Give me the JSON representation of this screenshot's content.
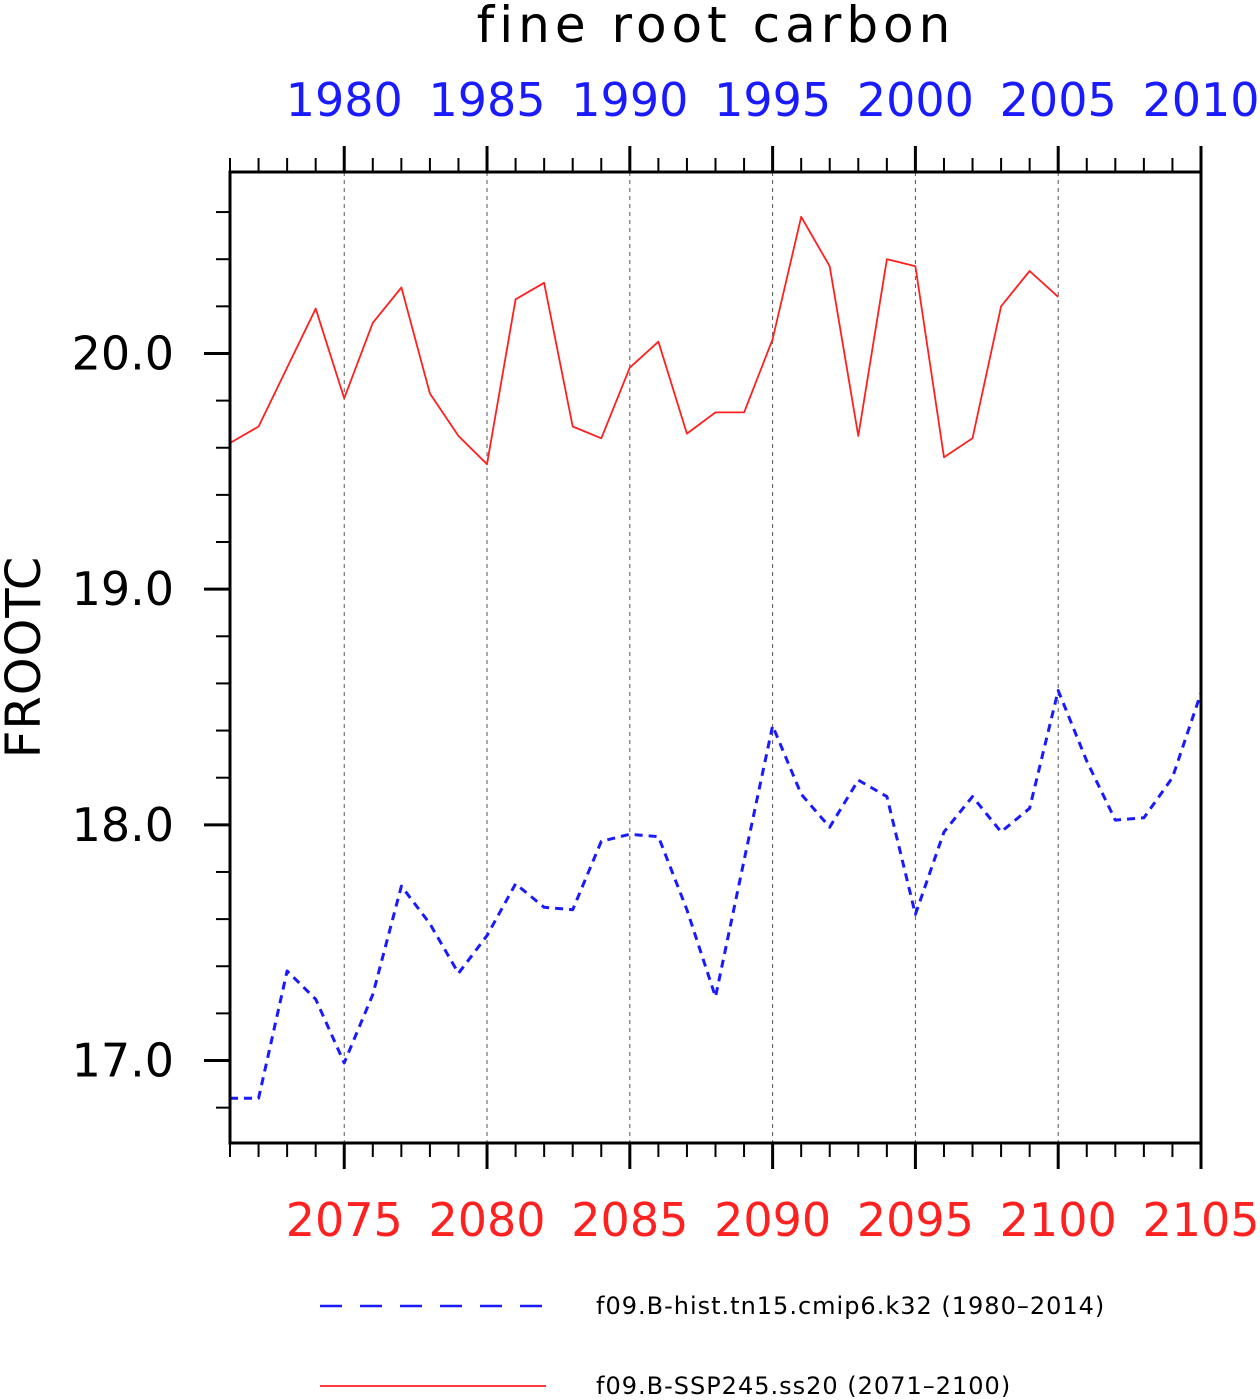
{
  "chart_data": {
    "type": "line",
    "title": "fine root carbon",
    "ylabel": "FROOTC",
    "ylim": [
      16.65,
      20.77
    ],
    "y_ticks": [
      17.0,
      18.0,
      19.0,
      20.0
    ],
    "y_tick_labels": [
      "17.0",
      "18.0",
      "19.0",
      "20.0"
    ],
    "y_minor_step": 0.2,
    "grid": "vertical dashed lines at labelled bottom-axis years",
    "x_top": {
      "range": [
        1976,
        2010
      ],
      "ticks": [
        1980,
        1985,
        1990,
        1995,
        2000,
        2005,
        2010
      ],
      "labels": [
        "1980",
        "1985",
        "1990",
        "1995",
        "2000",
        "2005",
        "2010"
      ],
      "color": "#1a1aff"
    },
    "x_bottom": {
      "range": [
        2071,
        2105
      ],
      "ticks": [
        2075,
        2080,
        2085,
        2090,
        2095,
        2100,
        2105
      ],
      "labels": [
        "2075",
        "2080",
        "2085",
        "2090",
        "2095",
        "2100",
        "2105"
      ],
      "color": "#ff2020"
    },
    "legend_position": "bottom",
    "series": [
      {
        "name": "f09.B-hist.tn15.cmip6.k32 (1980–2014)",
        "axis": "top",
        "color": "#1a1aff",
        "style": "dashed",
        "x": [
          1976,
          1977,
          1978,
          1979,
          1980,
          1981,
          1982,
          1983,
          1984,
          1985,
          1986,
          1987,
          1988,
          1989,
          1990,
          1991,
          1992,
          1993,
          1994,
          1995,
          1996,
          1997,
          1998,
          1999,
          2000,
          2001,
          2002,
          2003,
          2004,
          2005,
          2006,
          2007,
          2008,
          2009,
          2010
        ],
        "values": [
          16.84,
          16.84,
          17.38,
          17.26,
          16.99,
          17.28,
          17.74,
          17.58,
          17.37,
          17.53,
          17.75,
          17.65,
          17.64,
          17.93,
          17.96,
          17.95,
          17.64,
          17.27,
          17.85,
          18.42,
          18.13,
          17.99,
          18.19,
          18.12,
          17.62,
          17.97,
          18.12,
          17.97,
          18.07,
          18.57,
          18.27,
          18.02,
          18.03,
          18.2,
          18.56
        ]
      },
      {
        "name": "f09.B-SSP245.ss20 (2071–2100)",
        "axis": "bottom",
        "color": "#ff2020",
        "style": "solid",
        "x": [
          2071,
          2072,
          2073,
          2074,
          2075,
          2076,
          2077,
          2078,
          2079,
          2080,
          2081,
          2082,
          2083,
          2084,
          2085,
          2086,
          2087,
          2088,
          2089,
          2090,
          2091,
          2092,
          2093,
          2094,
          2095,
          2096,
          2097,
          2098,
          2099,
          2100
        ],
        "values": [
          19.62,
          19.69,
          19.94,
          20.19,
          19.81,
          20.13,
          20.28,
          19.83,
          19.65,
          19.53,
          20.23,
          20.3,
          19.69,
          19.64,
          19.94,
          20.05,
          19.66,
          19.75,
          19.75,
          20.06,
          20.58,
          20.37,
          19.65,
          20.4,
          20.37,
          19.56,
          19.64,
          20.2,
          20.35,
          20.24
        ]
      }
    ]
  }
}
